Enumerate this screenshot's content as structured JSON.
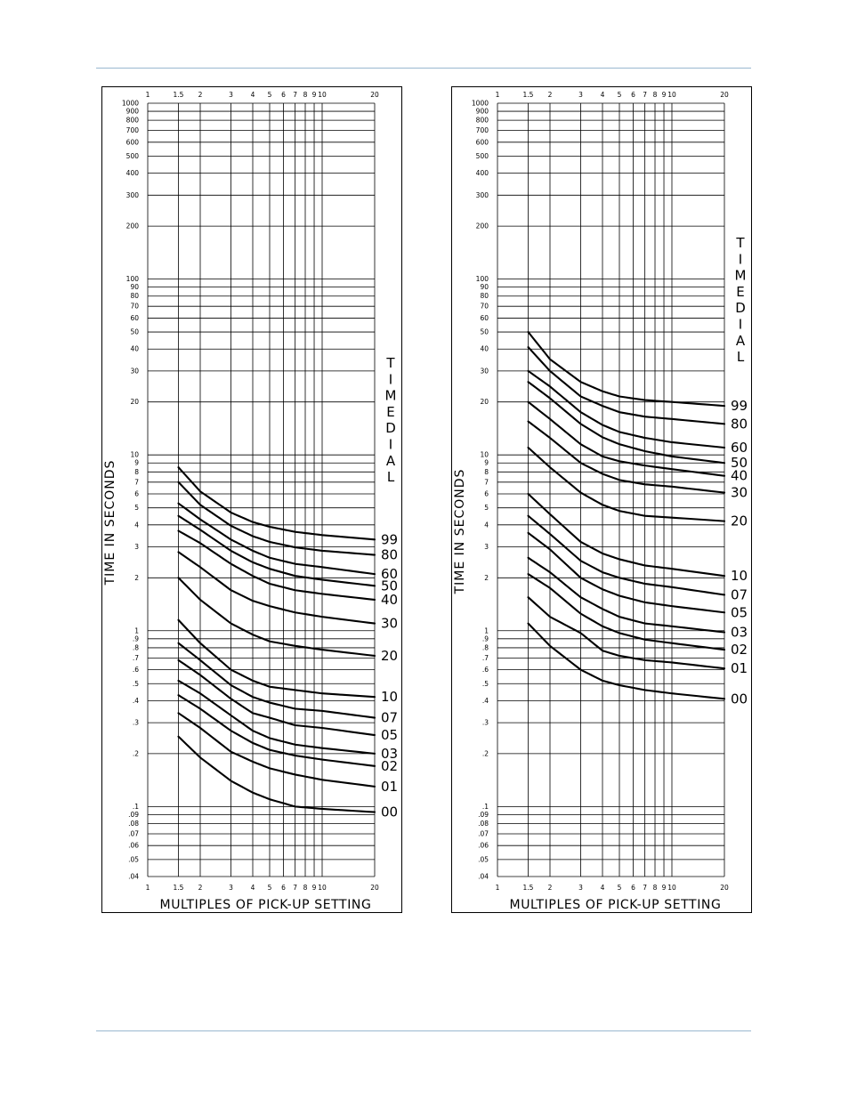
{
  "page": {
    "rule_color": "#9ab8d0"
  },
  "chart_data": [
    {
      "type": "line",
      "scale": "log-log",
      "xlabel": "MULTIPLES OF PICK-UP SETTING",
      "ylabel": "TIME IN SECONDS",
      "legend_title": "TIMEDIAL",
      "xlim": [
        1,
        20
      ],
      "ylim": [
        0.04,
        1000
      ],
      "x_ticks": [
        "1",
        "1.5",
        "2",
        "3",
        "4",
        "5",
        "6",
        "7",
        "8",
        "9",
        "10",
        "20"
      ],
      "y_ticks": [
        "1000",
        "900",
        "800",
        "700",
        "600",
        "500",
        "400",
        "300",
        "200",
        "100",
        "90",
        "80",
        "70",
        "60",
        "50",
        "40",
        "30",
        "20",
        "10",
        "9",
        "8",
        "7",
        "6",
        "5",
        "4",
        "3",
        "2",
        "1",
        ".9",
        ".8",
        ".7",
        ".6",
        ".5",
        ".4",
        ".3",
        ".2",
        ".1",
        ".09",
        ".08",
        ".07",
        ".06",
        ".05",
        ".04"
      ],
      "grid": true,
      "x": [
        1.5,
        2,
        3,
        4,
        5,
        7,
        10,
        20
      ],
      "series": [
        {
          "name": "99",
          "values": [
            8.5,
            6.2,
            4.7,
            4.15,
            3.9,
            3.65,
            3.5,
            3.3
          ]
        },
        {
          "name": "80",
          "values": [
            7.0,
            5.2,
            3.95,
            3.45,
            3.2,
            2.98,
            2.85,
            2.7
          ]
        },
        {
          "name": "60",
          "values": [
            5.3,
            4.3,
            3.3,
            2.85,
            2.6,
            2.4,
            2.3,
            2.1
          ]
        },
        {
          "name": "50",
          "values": [
            4.5,
            3.75,
            2.85,
            2.45,
            2.25,
            2.05,
            1.95,
            1.8
          ]
        },
        {
          "name": "40",
          "values": [
            3.7,
            3.15,
            2.4,
            2.05,
            1.85,
            1.7,
            1.62,
            1.5
          ]
        },
        {
          "name": "30",
          "values": [
            2.8,
            2.3,
            1.7,
            1.48,
            1.38,
            1.27,
            1.2,
            1.1
          ]
        },
        {
          "name": "20",
          "values": [
            2.0,
            1.5,
            1.1,
            0.95,
            0.87,
            0.82,
            0.78,
            0.72
          ]
        },
        {
          "name": "10",
          "values": [
            1.15,
            0.85,
            0.6,
            0.52,
            0.48,
            0.46,
            0.44,
            0.42
          ]
        },
        {
          "name": "07",
          "values": [
            0.85,
            0.68,
            0.49,
            0.42,
            0.39,
            0.36,
            0.35,
            0.32
          ]
        },
        {
          "name": "05",
          "values": [
            0.68,
            0.56,
            0.41,
            0.34,
            0.32,
            0.29,
            0.28,
            0.255
          ]
        },
        {
          "name": "03",
          "values": [
            0.52,
            0.44,
            0.33,
            0.27,
            0.245,
            0.225,
            0.215,
            0.2
          ]
        },
        {
          "name": "02",
          "values": [
            0.43,
            0.36,
            0.27,
            0.23,
            0.21,
            0.195,
            0.185,
            0.17
          ]
        },
        {
          "name": "01",
          "values": [
            0.34,
            0.28,
            0.205,
            0.18,
            0.165,
            0.152,
            0.142,
            0.13
          ]
        },
        {
          "name": "00",
          "values": [
            0.25,
            0.19,
            0.14,
            0.12,
            0.11,
            0.1,
            0.097,
            0.093
          ]
        }
      ]
    },
    {
      "type": "line",
      "scale": "log-log",
      "xlabel": "MULTIPLES OF PICK-UP SETTING",
      "ylabel": "TIME IN SECONDS",
      "legend_title": "TIMEDIAL",
      "xlim": [
        1,
        20
      ],
      "ylim": [
        0.04,
        1000
      ],
      "x_ticks": [
        "1",
        "1.5",
        "2",
        "3",
        "4",
        "5",
        "6",
        "7",
        "8",
        "9",
        "10",
        "20"
      ],
      "y_ticks": [
        "1000",
        "900",
        "800",
        "700",
        "600",
        "500",
        "400",
        "300",
        "200",
        "100",
        "90",
        "80",
        "70",
        "60",
        "50",
        "40",
        "30",
        "20",
        "10",
        "9",
        "8",
        "7",
        "6",
        "5",
        "4",
        "3",
        "2",
        "1",
        ".9",
        ".8",
        ".7",
        ".6",
        ".5",
        ".4",
        ".3",
        ".2",
        ".1",
        ".09",
        ".08",
        ".07",
        ".06",
        ".05",
        ".04"
      ],
      "grid": true,
      "x": [
        1.5,
        2,
        3,
        4,
        5,
        7,
        10,
        20
      ],
      "series": [
        {
          "name": "99",
          "values": [
            50,
            35,
            26,
            23,
            21.5,
            20.5,
            20,
            19
          ]
        },
        {
          "name": "80",
          "values": [
            41,
            30,
            21.5,
            19,
            17.5,
            16.5,
            16,
            15
          ]
        },
        {
          "name": "60",
          "values": [
            30,
            24.5,
            17.5,
            14.8,
            13.5,
            12.5,
            11.8,
            11
          ]
        },
        {
          "name": "50",
          "values": [
            26,
            21,
            15,
            12.6,
            11.5,
            10.5,
            9.8,
            9.0
          ]
        },
        {
          "name": "40",
          "values": [
            20,
            16,
            11.5,
            9.8,
            9.2,
            8.7,
            8.3,
            7.6
          ]
        },
        {
          "name": "30",
          "values": [
            15.5,
            12.5,
            9.0,
            7.8,
            7.2,
            6.8,
            6.6,
            6.1
          ]
        },
        {
          "name": "20",
          "values": [
            11,
            8.5,
            6.1,
            5.2,
            4.8,
            4.5,
            4.4,
            4.2
          ]
        },
        {
          "name": "10",
          "values": [
            6.0,
            4.6,
            3.2,
            2.75,
            2.55,
            2.35,
            2.25,
            2.05
          ]
        },
        {
          "name": "07",
          "values": [
            4.5,
            3.55,
            2.5,
            2.15,
            2.0,
            1.85,
            1.77,
            1.6
          ]
        },
        {
          "name": "05",
          "values": [
            3.6,
            2.9,
            2.0,
            1.72,
            1.58,
            1.45,
            1.38,
            1.27
          ]
        },
        {
          "name": "03",
          "values": [
            2.6,
            2.15,
            1.55,
            1.33,
            1.2,
            1.1,
            1.06,
            0.98
          ]
        },
        {
          "name": "02",
          "values": [
            2.1,
            1.75,
            1.25,
            1.06,
            0.97,
            0.89,
            0.85,
            0.78
          ]
        },
        {
          "name": "01",
          "values": [
            1.55,
            1.2,
            0.97,
            0.77,
            0.72,
            0.68,
            0.66,
            0.61
          ]
        },
        {
          "name": "00",
          "values": [
            1.1,
            0.82,
            0.6,
            0.52,
            0.49,
            0.46,
            0.44,
            0.41
          ]
        }
      ]
    }
  ]
}
